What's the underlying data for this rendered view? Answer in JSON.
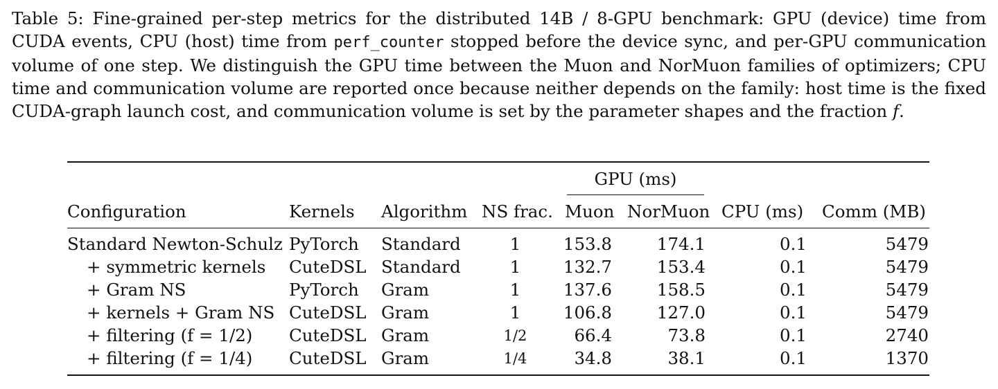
{
  "caption": {
    "part1": "Table 5: Fine-grained per-step metrics for the distributed 14B / 8-GPU benchmark: GPU (device) time from CUDA events, CPU (host) time from ",
    "code": "perf_counter",
    "part2": " stopped before the device sync, and per-GPU communication volume of one step. We distinguish the GPU time between the Muon and NorMuon families of optimizers; CPU time and communication volume are reported once because neither depends on the family: host time is the fixed CUDA-graph launch cost, and communication volume is set by the parameter shapes and the fraction ",
    "var": "f",
    "part3": "."
  },
  "table": {
    "group_header": "GPU (ms)",
    "headers": {
      "configuration": "Configuration",
      "kernels": "Kernels",
      "algorithm": "Algorithm",
      "ns_frac": "NS frac.",
      "muon": "Muon",
      "normuon": "NorMuon",
      "cpu": "CPU (ms)",
      "comm": "Comm (MB)"
    },
    "rows": [
      {
        "configuration": "Standard Newton-Schulz",
        "kernels": "PyTorch",
        "algorithm": "Standard",
        "ns_frac": "1",
        "muon": "153.8",
        "normuon": "174.1",
        "cpu": "0.1",
        "comm": "5479"
      },
      {
        "configuration": "+ symmetric kernels",
        "kernels": "CuteDSL",
        "algorithm": "Standard",
        "ns_frac": "1",
        "muon": "132.7",
        "normuon": "153.4",
        "cpu": "0.1",
        "comm": "5479"
      },
      {
        "configuration": "+ Gram NS",
        "kernels": "PyTorch",
        "algorithm": "Gram",
        "ns_frac": "1",
        "muon": "137.6",
        "normuon": "158.5",
        "cpu": "0.1",
        "comm": "5479"
      },
      {
        "configuration": "+ kernels + Gram NS",
        "kernels": "CuteDSL",
        "algorithm": "Gram",
        "ns_frac": "1",
        "muon": "106.8",
        "normuon": "127.0",
        "cpu": "0.1",
        "comm": "5479"
      },
      {
        "configuration": "+ filtering (f = 1/2)",
        "kernels": "CuteDSL",
        "algorithm": "Gram",
        "ns_frac": "1/2",
        "muon": "66.4",
        "normuon": "73.8",
        "cpu": "0.1",
        "comm": "2740"
      },
      {
        "configuration": "+ filtering (f = 1/4)",
        "kernels": "CuteDSL",
        "algorithm": "Gram",
        "ns_frac": "1/4",
        "muon": "34.8",
        "normuon": "38.1",
        "cpu": "0.1",
        "comm": "1370"
      }
    ]
  }
}
